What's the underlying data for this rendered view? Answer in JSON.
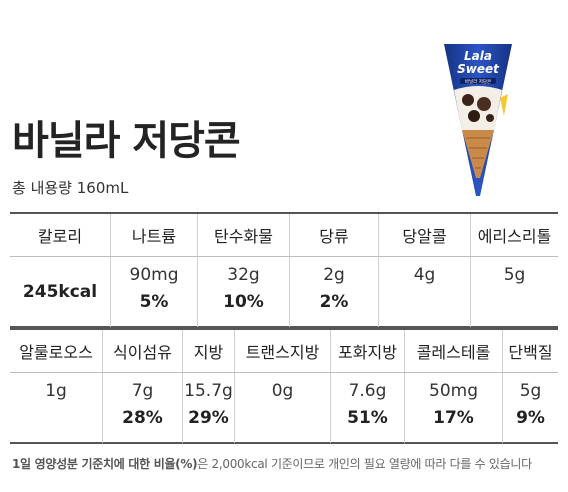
{
  "product": {
    "title": "바닐라 저당콘",
    "volume": "총 내용량 160mL",
    "brand_line1": "Lala",
    "brand_line2": "Sweet",
    "package_flavor": "바닐라 저당콘"
  },
  "table1": {
    "headers": [
      "칼로리",
      "나트륨",
      "탄수화물",
      "당류",
      "당알콜",
      "에리스리톨"
    ],
    "calories": "245kcal",
    "cells": [
      {
        "amount": "90mg",
        "percent": "5%"
      },
      {
        "amount": "32g",
        "percent": "10%"
      },
      {
        "amount": "2g",
        "percent": "2%"
      },
      {
        "amount": "4g",
        "percent": ""
      },
      {
        "amount": "5g",
        "percent": ""
      }
    ]
  },
  "table2": {
    "headers": [
      "알룰로오스",
      "식이섬유",
      "지방",
      "트랜스지방",
      "포화지방",
      "콜레스테롤",
      "단백질"
    ],
    "cells": [
      {
        "amount": "1g",
        "percent": ""
      },
      {
        "amount": "7g",
        "percent": "28%"
      },
      {
        "amount": "15.7g",
        "percent": "29%"
      },
      {
        "amount": "0g",
        "percent": ""
      },
      {
        "amount": "7.6g",
        "percent": "51%"
      },
      {
        "amount": "50mg",
        "percent": "17%"
      },
      {
        "amount": "5g",
        "percent": "9%"
      }
    ]
  },
  "footnote": {
    "bold": "1일 영양성분 기준치에 대한 비율(%)",
    "rest": "은 2,000kcal 기준이므로 개인의 필요 열량에 따라 다를 수 있습니다"
  },
  "colors": {
    "package_blue": "#1f3f9e",
    "cone_brown": "#c98a4a",
    "border_dark": "#555555"
  }
}
